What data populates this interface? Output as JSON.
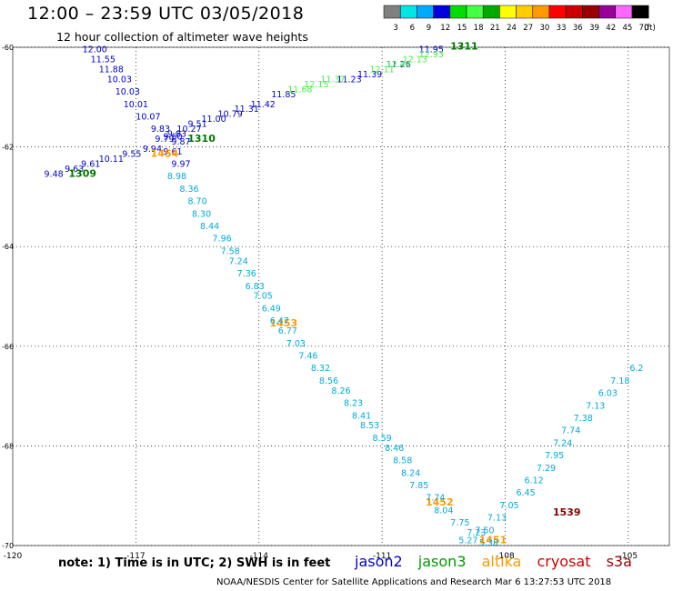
{
  "header": {
    "title": "12:00 – 23:59 UTC 03/05/2018",
    "subtitle": "12 hour collection of altimeter wave heights"
  },
  "colorbar": {
    "labels": [
      "3",
      "6",
      "9",
      "12",
      "15",
      "18",
      "21",
      "24",
      "27",
      "30",
      "33",
      "36",
      "39",
      "42",
      "45",
      "70"
    ],
    "colors": [
      "#808080",
      "#00e5e5",
      "#00aaff",
      "#0000dd",
      "#00dd00",
      "#44ff44",
      "#00aa00",
      "#ffff00",
      "#ffcc00",
      "#ff9900",
      "#ff0000",
      "#cc0000",
      "#990000",
      "#990099",
      "#ff66ff",
      "#000000"
    ],
    "unit": "(ft)"
  },
  "note": "note:  1) Time is in UTC;  2) SWH is in feet",
  "legend": [
    {
      "label": "jason2",
      "color": "#0000cc"
    },
    {
      "label": "jason3",
      "color": "#009900"
    },
    {
      "label": "altika",
      "color": "#ff9900"
    },
    {
      "label": "cryosat",
      "color": "#cc0000"
    },
    {
      "label": "s3a",
      "color": "#990000"
    }
  ],
  "footer": {
    "credit": "NOAA/NESDIS Center for Satellite Applications and Research    Mar  6 13:27:53 UTC 2018"
  },
  "chart_data": {
    "type": "scatter",
    "title": "12:00 – 23:59 UTC 03/05/2018",
    "subtitle": "12 hour collection of altimeter wave heights",
    "xlabel": "",
    "ylabel": "",
    "xlim": [
      -120,
      -104
    ],
    "ylim": [
      -70,
      -60
    ],
    "x_ticks": [
      "-120",
      "-117",
      "-114",
      "-111",
      "-108",
      "-105"
    ],
    "y_ticks": [
      "-60",
      "-62",
      "-64",
      "-66",
      "-68",
      "-70"
    ],
    "grid": true,
    "legend_position": "bottom",
    "series": [
      {
        "name": "jason2",
        "pass_labels": [
          {
            "text": "1309",
            "lon": -118.3,
            "lat": -62.6
          },
          {
            "text": "1310",
            "lon": -115.4,
            "lat": -61.9
          }
        ],
        "points": [
          {
            "lon": -119.0,
            "lat": -62.6,
            "v": "9.48"
          },
          {
            "lon": -118.5,
            "lat": -62.5,
            "v": "9.63"
          },
          {
            "lon": -118.1,
            "lat": -62.4,
            "v": "9.61"
          },
          {
            "lon": -117.6,
            "lat": -62.3,
            "v": "10.11"
          },
          {
            "lon": -117.1,
            "lat": -62.2,
            "v": "9.55"
          },
          {
            "lon": -116.6,
            "lat": -62.1,
            "v": "9.94"
          },
          {
            "lon": -116.3,
            "lat": -61.9,
            "v": "9.79"
          },
          {
            "lon": -116.0,
            "lat": -61.8,
            "v": "9.83"
          },
          {
            "lon": -118.0,
            "lat": -60.1,
            "v": "12.00"
          },
          {
            "lon": -117.8,
            "lat": -60.3,
            "v": "11.55"
          },
          {
            "lon": -117.6,
            "lat": -60.5,
            "v": "11.88"
          },
          {
            "lon": -117.4,
            "lat": -60.7,
            "v": "10.03"
          },
          {
            "lon": -117.2,
            "lat": -60.95,
            "v": "10.03"
          },
          {
            "lon": -117.0,
            "lat": -61.2,
            "v": "10.01"
          },
          {
            "lon": -116.7,
            "lat": -61.45,
            "v": "10.07"
          },
          {
            "lon": -116.4,
            "lat": -61.7,
            "v": "9.83"
          },
          {
            "lon": -116.1,
            "lat": -61.85,
            "v": "9.60"
          },
          {
            "lon": -115.9,
            "lat": -61.95,
            "v": "9.87"
          },
          {
            "lon": -115.7,
            "lat": -61.7,
            "v": "10.27"
          },
          {
            "lon": -115.5,
            "lat": -61.6,
            "v": "9.51"
          },
          {
            "lon": -115.1,
            "lat": -61.5,
            "v": "11.00"
          },
          {
            "lon": -114.7,
            "lat": -61.4,
            "v": "10.79"
          },
          {
            "lon": -114.3,
            "lat": -61.3,
            "v": "11.31"
          },
          {
            "lon": -113.9,
            "lat": -61.2,
            "v": "11.42"
          },
          {
            "lon": -113.4,
            "lat": -61.0,
            "v": "11.85"
          },
          {
            "lon": -111.8,
            "lat": -60.7,
            "v": "11.23"
          },
          {
            "lon": -111.3,
            "lat": -60.6,
            "v": "11.39"
          },
          {
            "lon": -110.6,
            "lat": -60.4,
            "v": "11.26"
          },
          {
            "lon": -109.8,
            "lat": -60.1,
            "v": "11.95"
          },
          {
            "lon": -116.1,
            "lat": -62.15,
            "v": "9.61"
          },
          {
            "lon": -115.9,
            "lat": -62.4,
            "v": "9.97"
          }
        ]
      },
      {
        "name": "jason3",
        "pass_labels": [
          {
            "text": "1311",
            "lon": -109.0,
            "lat": -60.05
          }
        ],
        "points": [
          {
            "lon": -113.0,
            "lat": -60.9,
            "v": "11.68"
          },
          {
            "lon": -112.6,
            "lat": -60.8,
            "v": "12.15"
          },
          {
            "lon": -112.2,
            "lat": -60.7,
            "v": "11.37"
          },
          {
            "lon": -111.0,
            "lat": -60.5,
            "v": "12.11"
          },
          {
            "lon": -110.6,
            "lat": -60.4,
            "v": "12.44"
          },
          {
            "lon": -110.2,
            "lat": -60.3,
            "v": "12.13"
          },
          {
            "lon": -109.8,
            "lat": -60.2,
            "v": "12.93"
          }
        ]
      },
      {
        "name": "altika",
        "pass_labels": [
          {
            "text": "1454",
            "lon": -116.3,
            "lat": -62.2
          },
          {
            "text": "1453",
            "lon": -113.4,
            "lat": -65.6
          },
          {
            "text": "1452",
            "lon": -109.6,
            "lat": -69.2
          },
          {
            "lon": -108.3,
            "lat": -69.95,
            "text": "1451"
          }
        ],
        "points": []
      },
      {
        "name": "cryosat",
        "pass_labels": [],
        "points": []
      },
      {
        "name": "s3a",
        "pass_labels": [
          {
            "text": "1539",
            "lon": -106.5,
            "lat": -69.4
          }
        ],
        "points": []
      },
      {
        "name": "altika-values",
        "points": [
          {
            "lon": -116.0,
            "lat": -62.65,
            "v": "8.98"
          },
          {
            "lon": -115.7,
            "lat": -62.9,
            "v": "8.36"
          },
          {
            "lon": -115.5,
            "lat": -63.15,
            "v": "8.70"
          },
          {
            "lon": -115.4,
            "lat": -63.4,
            "v": "8.30"
          },
          {
            "lon": -115.2,
            "lat": -63.65,
            "v": "8.44"
          },
          {
            "lon": -114.9,
            "lat": -63.9,
            "v": "7.96"
          },
          {
            "lon": -114.7,
            "lat": -64.15,
            "v": "7.58"
          },
          {
            "lon": -114.5,
            "lat": -64.35,
            "v": "7.24"
          },
          {
            "lon": -114.3,
            "lat": -64.6,
            "v": "7.36"
          },
          {
            "lon": -114.1,
            "lat": -64.85,
            "v": "6.83"
          },
          {
            "lon": -113.9,
            "lat": -65.05,
            "v": "7.05"
          },
          {
            "lon": -113.7,
            "lat": -65.3,
            "v": "6.49"
          },
          {
            "lon": -113.5,
            "lat": -65.55,
            "v": "6.47"
          },
          {
            "lon": -113.3,
            "lat": -65.75,
            "v": "6.77"
          },
          {
            "lon": -113.1,
            "lat": -66.0,
            "v": "7.03"
          },
          {
            "lon": -112.8,
            "lat": -66.25,
            "v": "7.46"
          },
          {
            "lon": -112.5,
            "lat": -66.5,
            "v": "8.32"
          },
          {
            "lon": -112.3,
            "lat": -66.75,
            "v": "8.56"
          },
          {
            "lon": -112.0,
            "lat": -66.95,
            "v": "8.26"
          },
          {
            "lon": -111.7,
            "lat": -67.2,
            "v": "8.23"
          },
          {
            "lon": -111.5,
            "lat": -67.45,
            "v": "8.41"
          },
          {
            "lon": -111.3,
            "lat": -67.65,
            "v": "8.53"
          },
          {
            "lon": -111.0,
            "lat": -67.9,
            "v": "8.59"
          },
          {
            "lon": -110.7,
            "lat": -68.1,
            "v": "8.46"
          },
          {
            "lon": -110.5,
            "lat": -68.35,
            "v": "8.58"
          },
          {
            "lon": -110.3,
            "lat": -68.6,
            "v": "8.24"
          },
          {
            "lon": -110.1,
            "lat": -68.85,
            "v": "7.85"
          },
          {
            "lon": -109.7,
            "lat": -69.1,
            "v": "7.74"
          },
          {
            "lon": -109.5,
            "lat": -69.35,
            "v": "8.04"
          },
          {
            "lon": -109.1,
            "lat": -69.6,
            "v": "7.75"
          },
          {
            "lon": -108.7,
            "lat": -69.8,
            "v": "7.23"
          },
          {
            "lon": -108.9,
            "lat": -69.95,
            "v": "5.27"
          },
          {
            "lon": -108.4,
            "lat": -70.0,
            "v": "5.38"
          },
          {
            "lon": -108.5,
            "lat": -69.75,
            "v": "7.50"
          },
          {
            "lon": -108.2,
            "lat": -69.5,
            "v": "7.13"
          },
          {
            "lon": -107.9,
            "lat": -69.25,
            "v": "7.05"
          },
          {
            "lon": -107.5,
            "lat": -69.0,
            "v": "6.45"
          },
          {
            "lon": -107.3,
            "lat": -68.75,
            "v": "6.12"
          },
          {
            "lon": -107.0,
            "lat": -68.5,
            "v": "7.29"
          },
          {
            "lon": -106.8,
            "lat": -68.25,
            "v": "7.95"
          },
          {
            "lon": -106.6,
            "lat": -68.0,
            "v": "7.24"
          },
          {
            "lon": -106.4,
            "lat": -67.75,
            "v": "7.74"
          },
          {
            "lon": -106.1,
            "lat": -67.5,
            "v": "7.38"
          },
          {
            "lon": -105.8,
            "lat": -67.25,
            "v": "7.13"
          },
          {
            "lon": -105.5,
            "lat": -67.0,
            "v": "6.03"
          },
          {
            "lon": -105.2,
            "lat": -66.75,
            "v": "7.18"
          },
          {
            "lon": -104.8,
            "lat": -66.5,
            "v": "6.2"
          }
        ]
      }
    ]
  }
}
